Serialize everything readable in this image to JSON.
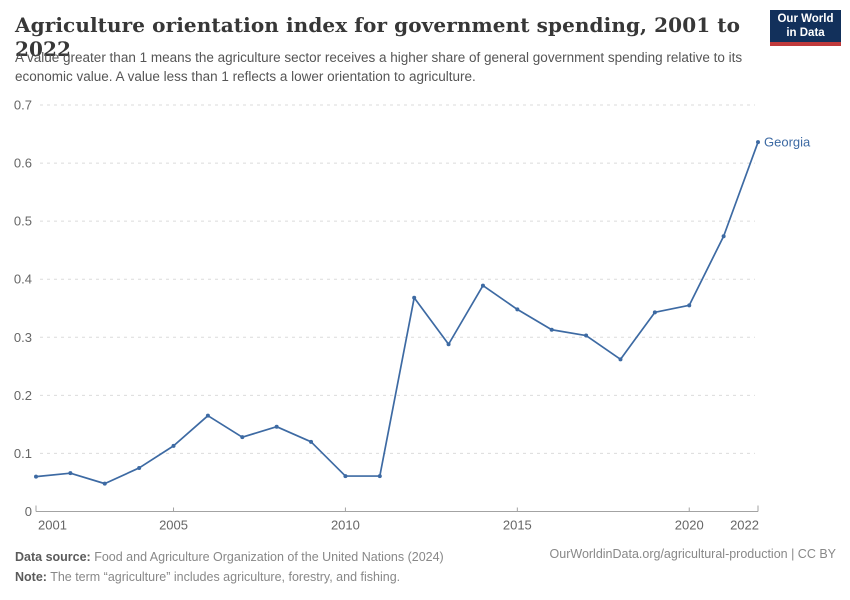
{
  "header": {
    "title": "Agriculture orientation index for government spending, 2001 to 2022",
    "subtitle": "A value greater than 1 means the agriculture sector receives a higher share of general government spending relative to its economic value. A value less than 1 reflects a lower orientation to agriculture.",
    "logo": {
      "line1": "Our World",
      "line2": "in Data",
      "bg_color": "#12305B",
      "accent_color": "#C0393B"
    }
  },
  "chart_data": {
    "type": "line",
    "title": "Agriculture orientation index for government spending, 2001 to 2022",
    "x": [
      2001,
      2002,
      2003,
      2004,
      2005,
      2006,
      2007,
      2008,
      2009,
      2010,
      2011,
      2012,
      2013,
      2014,
      2015,
      2016,
      2017,
      2018,
      2019,
      2020,
      2021,
      2022
    ],
    "series": [
      {
        "name": "Georgia",
        "color": "#3D6AA3",
        "values": [
          0.06,
          0.066,
          0.048,
          0.075,
          0.113,
          0.165,
          0.128,
          0.146,
          0.12,
          0.061,
          0.061,
          0.368,
          0.288,
          0.389,
          0.348,
          0.313,
          0.303,
          0.262,
          0.343,
          0.355,
          0.474,
          0.636
        ]
      }
    ],
    "xlabel": "",
    "ylabel": "",
    "ylim": [
      0,
      0.7
    ],
    "yticks": [
      0,
      0.1,
      0.2,
      0.3,
      0.4,
      0.5,
      0.6,
      0.7
    ],
    "xticks": [
      2001,
      2005,
      2010,
      2015,
      2020,
      2022
    ],
    "grid": "horizontal-dashed",
    "legend_position": "end-of-line-label",
    "colors": {
      "gridline": "#DBDBDB",
      "axis_line": "#A3A3A3",
      "tick_label": "#666666"
    }
  },
  "footer": {
    "data_source_label": "Data source:",
    "data_source_text": " Food and Agriculture Organization of the United Nations (2024)",
    "note_label": "Note:",
    "note_text": " The term “agriculture” includes agriculture, forestry, and fishing.",
    "link": "OurWorldinData.org/agricultural-production | CC BY"
  }
}
